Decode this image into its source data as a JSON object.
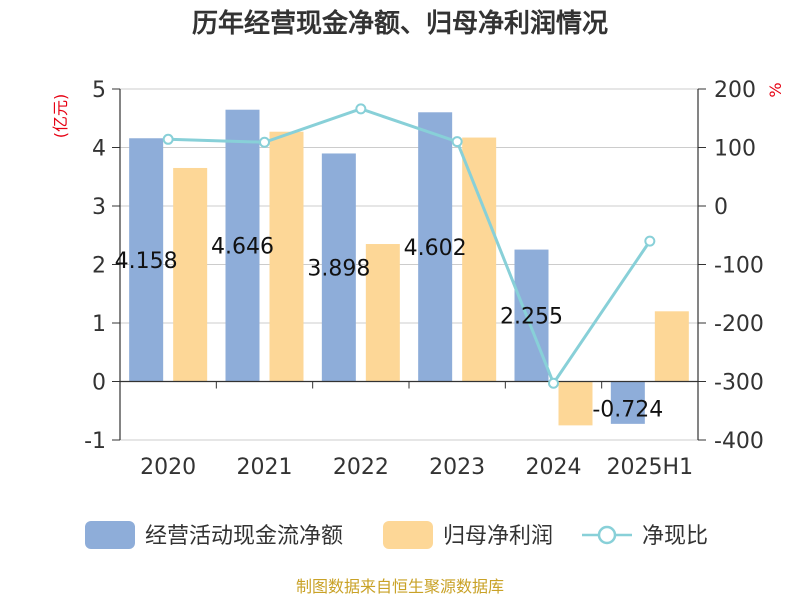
{
  "chart_data": {
    "type": "bar",
    "title": "历年经营现金净额、归母净利润情况",
    "categories": [
      "2020",
      "2021",
      "2022",
      "2023",
      "2024",
      "2025H1"
    ],
    "left_axis": {
      "unit": "(亿元)",
      "ylim": [
        -1,
        5
      ],
      "ticks": [
        "5",
        "4",
        "3",
        "2",
        "1",
        "0",
        "-1"
      ]
    },
    "right_axis": {
      "unit": "%",
      "ylim": [
        -400,
        200
      ],
      "ticks": [
        "200",
        "100",
        "0",
        "-100",
        "-200",
        "-300",
        "-400"
      ]
    },
    "series": [
      {
        "name": "经营活动现金流净额",
        "type": "bar",
        "axis": "left",
        "color": "#8eadd9",
        "values": [
          4.158,
          4.646,
          3.898,
          4.602,
          2.255,
          -0.724
        ],
        "labels": [
          "4.158",
          "4.646",
          "3.898",
          "4.602",
          "2.255",
          "-0.724"
        ]
      },
      {
        "name": "归母净利润",
        "type": "bar",
        "axis": "left",
        "color": "#fdd797",
        "values": [
          3.65,
          4.27,
          2.35,
          4.17,
          -0.75,
          1.2
        ]
      },
      {
        "name": "净现比",
        "type": "line",
        "axis": "right",
        "color": "#88d0d8",
        "values": [
          114,
          109,
          166,
          110,
          -303,
          -60
        ]
      }
    ],
    "grid": true,
    "legend": "bottom"
  },
  "source": "制图数据来自恒生聚源数据库"
}
